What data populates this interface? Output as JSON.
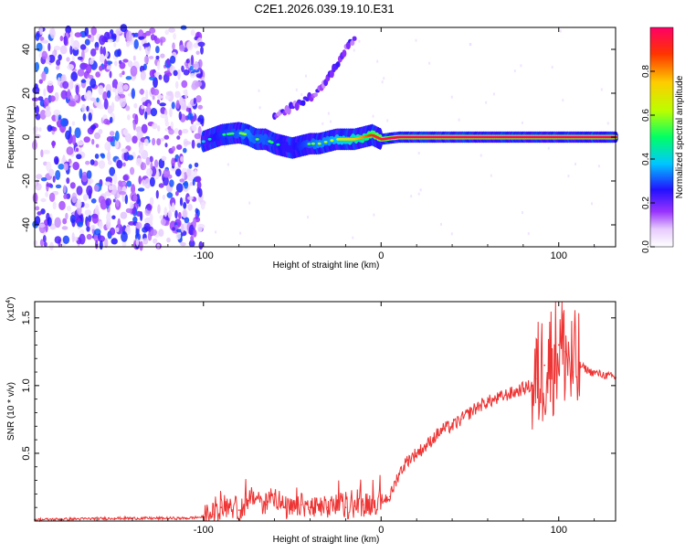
{
  "title": "C2E1.2026.039.19.10.E31",
  "chart_data": [
    {
      "type": "heatmap",
      "xlabel": "Height of straight line (km)",
      "ylabel": "Frequency (Hz)",
      "xlim": [
        -195,
        132
      ],
      "ylim": [
        -50,
        50
      ],
      "x_ticks": [
        -100,
        0,
        100
      ],
      "x_tick_labels": [
        "-100",
        "0",
        "100"
      ],
      "y_ticks": [
        -40,
        -20,
        0,
        20,
        40
      ],
      "y_tick_labels": [
        "-40",
        "-20",
        "0",
        "20",
        "40"
      ],
      "noise_region_x": [
        -195,
        -100
      ],
      "ridge": {
        "x": [
          -100,
          -90,
          -80,
          -75,
          -70,
          -65,
          -60,
          -55,
          -50,
          -45,
          -40,
          -35,
          -30,
          -25,
          -20,
          -15,
          -10,
          -5,
          0,
          10,
          20,
          40,
          60,
          80,
          90,
          100,
          110,
          120,
          132
        ],
        "freq": [
          -2,
          1,
          2,
          1,
          -1,
          -1,
          -3,
          -4,
          -5,
          -4,
          -3,
          -3,
          -2,
          -1,
          -1,
          -1,
          0,
          1,
          -1,
          0,
          0,
          0,
          0,
          0,
          0,
          0,
          0,
          0,
          0
        ],
        "amplitude": [
          0.35,
          0.45,
          0.5,
          0.55,
          0.5,
          0.5,
          0.45,
          0.4,
          0.4,
          0.45,
          0.5,
          0.55,
          0.55,
          0.6,
          0.65,
          0.7,
          0.75,
          0.85,
          0.9,
          0.95,
          0.95,
          0.95,
          0.95,
          0.95,
          0.95,
          0.95,
          0.95,
          0.95,
          0.95
        ]
      },
      "secondary_branch": {
        "x": [
          -60,
          -50,
          -40,
          -35,
          -30,
          -25,
          -20,
          -15
        ],
        "freq": [
          9,
          14,
          18,
          21,
          27,
          33,
          40,
          45
        ]
      },
      "colorbar": {
        "label": "Normalized spectral amplitude",
        "ticks": [
          0.0,
          0.2,
          0.4,
          0.6,
          0.8
        ],
        "tick_labels": [
          "0.0",
          "0.2",
          "0.4",
          "0.6",
          "0.8"
        ]
      }
    },
    {
      "type": "line",
      "xlabel": "Height of straight line (km)",
      "ylabel": "SNR (10 * v/v)",
      "exponent_label": "(x10",
      "exponent_power": "4",
      "exponent_close": ")",
      "xlim": [
        -195,
        132
      ],
      "ylim": [
        0,
        1.62
      ],
      "x_ticks": [
        -100,
        0,
        100
      ],
      "x_tick_labels": [
        "-100",
        "0",
        "100"
      ],
      "y_ticks": [
        0.5,
        1.0,
        1.5
      ],
      "y_tick_labels": [
        "0.5",
        "1.0",
        "1.5"
      ],
      "color": "#ee3333",
      "series": [
        {
          "name": "SNR",
          "x": [
            -195,
            -150,
            -110,
            -100,
            -95,
            -90,
            -85,
            -80,
            -75,
            -70,
            -65,
            -60,
            -55,
            -50,
            -45,
            -40,
            -35,
            -30,
            -25,
            -20,
            -15,
            -10,
            -5,
            0,
            5,
            10,
            15,
            20,
            25,
            30,
            35,
            40,
            45,
            50,
            55,
            60,
            65,
            70,
            75,
            80,
            85,
            88,
            92,
            96,
            100,
            104,
            108,
            112,
            118,
            125,
            132
          ],
          "y": [
            0.01,
            0.02,
            0.02,
            0.03,
            0.05,
            0.1,
            0.12,
            0.08,
            0.15,
            0.18,
            0.12,
            0.2,
            0.1,
            0.08,
            0.12,
            0.1,
            0.09,
            0.1,
            0.12,
            0.1,
            0.11,
            0.12,
            0.13,
            0.15,
            0.18,
            0.35,
            0.45,
            0.5,
            0.55,
            0.62,
            0.68,
            0.7,
            0.75,
            0.8,
            0.85,
            0.88,
            0.9,
            0.93,
            0.95,
            0.98,
            1.0,
            1.05,
            1.15,
            1.2,
            1.3,
            1.25,
            1.1,
            1.15,
            1.1,
            1.08,
            1.06
          ]
        }
      ]
    }
  ]
}
